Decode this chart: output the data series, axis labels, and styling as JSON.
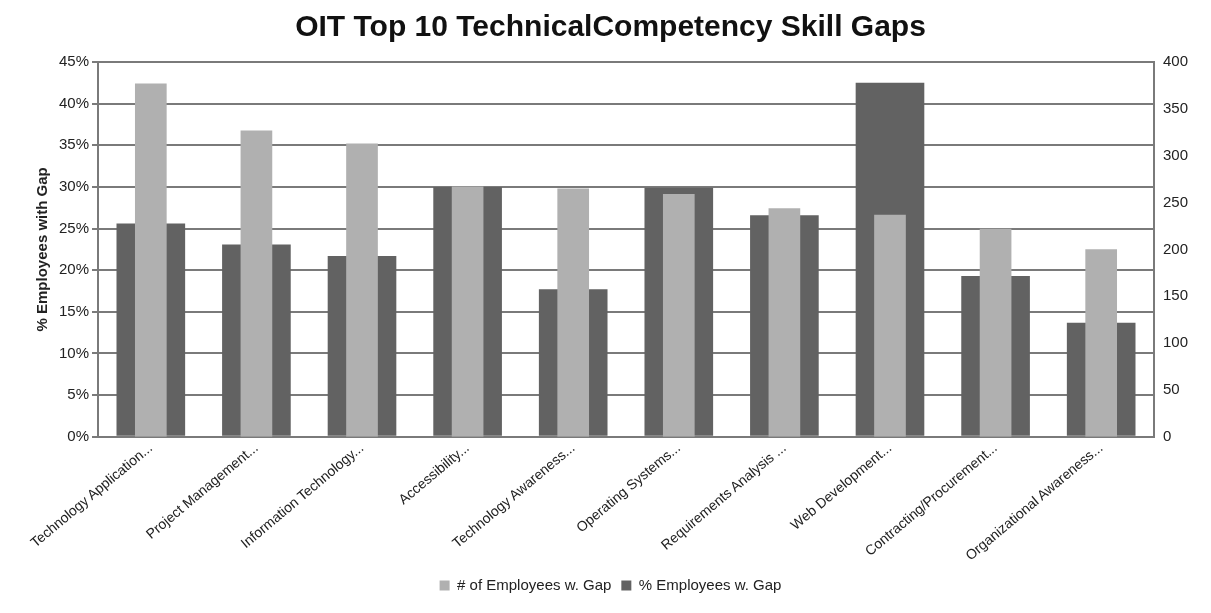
{
  "chart_data": {
    "type": "bar",
    "title": "OIT Top 10 TechnicalCompetency Skill Gaps",
    "ylabel": "% Employees with Gap",
    "categories": [
      "Technology Application...",
      "Project Management...",
      "Information Technology...",
      "Accessibility...",
      "Technology Awareness...",
      "Operating Systems...",
      "Requirements Analysis ...",
      "Web Development...",
      "Contracting/Procurement...",
      "Organizational Awareness..."
    ],
    "series": [
      {
        "name": "% Employees w. Gap",
        "color": "#626262",
        "values": [
          25.6,
          23.1,
          21.7,
          30.0,
          17.7,
          29.9,
          26.6,
          42.5,
          19.3,
          13.7
        ]
      },
      {
        "name": "# of Employees w. Gap",
        "color": "#b0b0b0",
        "axis": "y2",
        "values": [
          377,
          327,
          313,
          267,
          265,
          259,
          244,
          237,
          222,
          200
        ]
      }
    ],
    "ylim": [
      0,
      45
    ],
    "yticks": [
      {
        "value": 0,
        "label": "0%"
      },
      {
        "value": 5,
        "label": "5%"
      },
      {
        "value": 10,
        "label": "10%"
      },
      {
        "value": 15,
        "label": "15%"
      },
      {
        "value": 20,
        "label": "20%"
      },
      {
        "value": 25,
        "label": "25%"
      },
      {
        "value": 30,
        "label": "30%"
      },
      {
        "value": 35,
        "label": "35%"
      },
      {
        "value": 40,
        "label": "40%"
      },
      {
        "value": 45,
        "label": "45%"
      }
    ],
    "y2lim": [
      0,
      400
    ],
    "y2ticks": [
      0,
      50,
      100,
      150,
      200,
      250,
      300,
      350,
      400
    ],
    "grid": "y",
    "legend": "bottom"
  }
}
